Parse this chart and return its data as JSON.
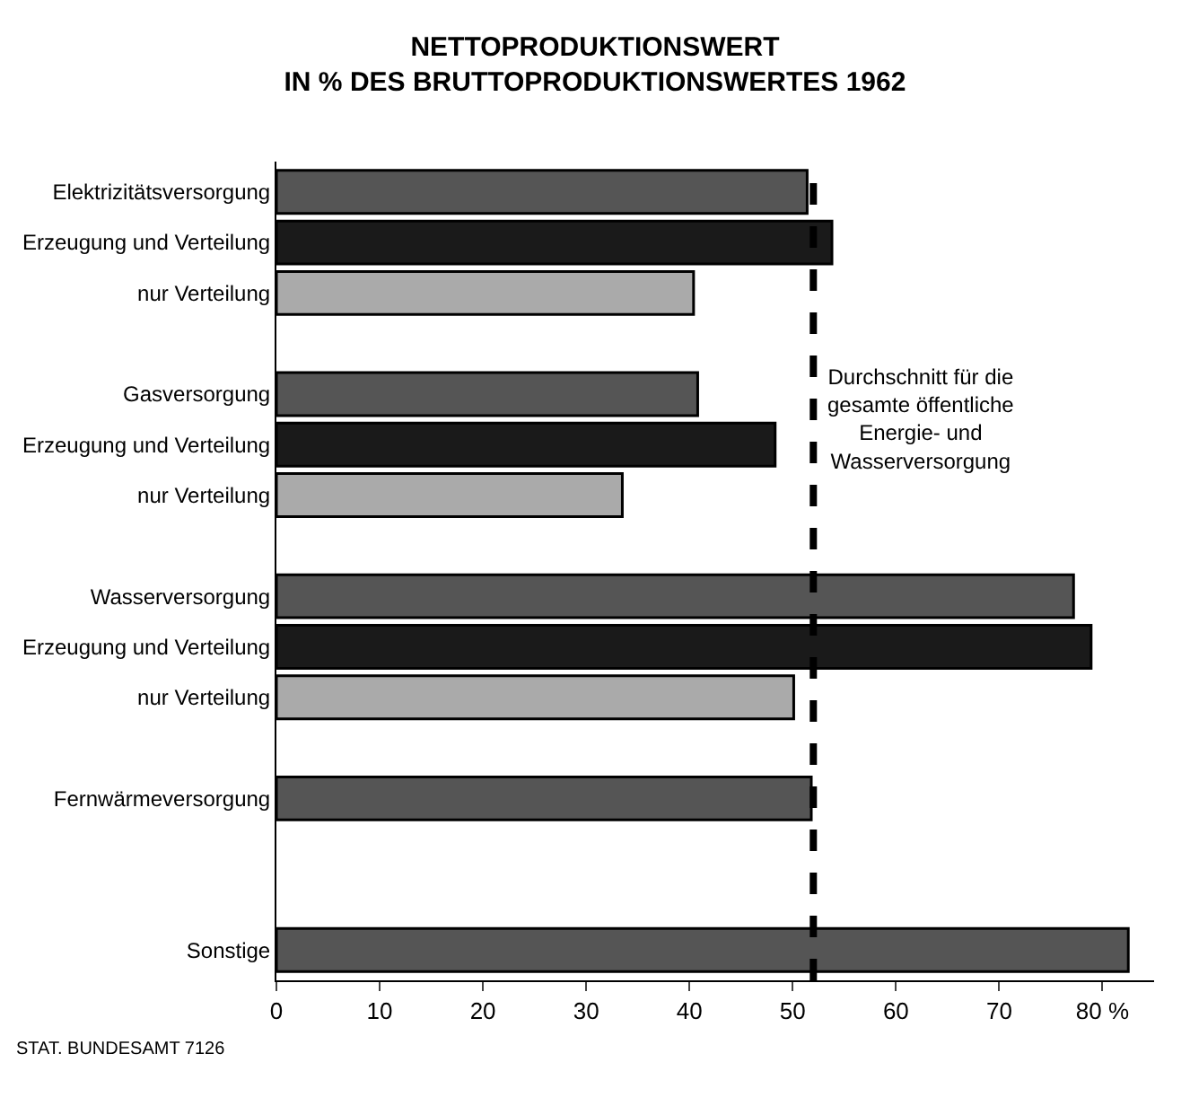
{
  "chart_data": {
    "type": "bar",
    "orientation": "horizontal",
    "title": "NETTOPRODUKTIONSWERT\nIN % DES BRUTTOPRODUKTIONSWERTES 1962",
    "categories": [
      "Elektrizitätsversorgung",
      "Erzeugung und Verteilung",
      "nur Verteilung",
      null,
      "Gasversorgung",
      "Erzeugung und Verteilung",
      "nur Verteilung",
      null,
      "Wasserversorgung",
      "Erzeugung und Verteilung",
      "nur Verteilung",
      null,
      "Fernwärmeversorgung",
      null,
      null,
      "Sonstige"
    ],
    "values": [
      51.4,
      53.8,
      40.4,
      null,
      40.8,
      48.3,
      33.5,
      null,
      77.2,
      78.9,
      50.1,
      null,
      51.8,
      null,
      null,
      82.5
    ],
    "colors": [
      "#555555",
      "#1a1a1a",
      "#aaaaaa",
      "#ffffff",
      "#555555",
      "#1a1a1a",
      "#aaaaaa",
      "#ffffff",
      "#555555",
      "#1a1a1a",
      "#aaaaaa",
      "#ffffff",
      "#555555",
      "#ffffff",
      "#ffffff",
      "#555555"
    ],
    "xlim": [
      0,
      85
    ],
    "xticks": [
      0,
      10,
      20,
      30,
      40,
      50,
      60,
      70,
      {
        "value": 80,
        "label": "80 %"
      }
    ],
    "ref_lines": [
      {
        "axis": "x",
        "value": 52,
        "label": "Durchschnitt für die\ngesamte öffentliche\nEnergie- und\nWasserversorgung",
        "color": "#000000",
        "line_style": "dashed"
      }
    ],
    "annotations": [
      "STAT. BUNDESAMT 7126"
    ]
  }
}
